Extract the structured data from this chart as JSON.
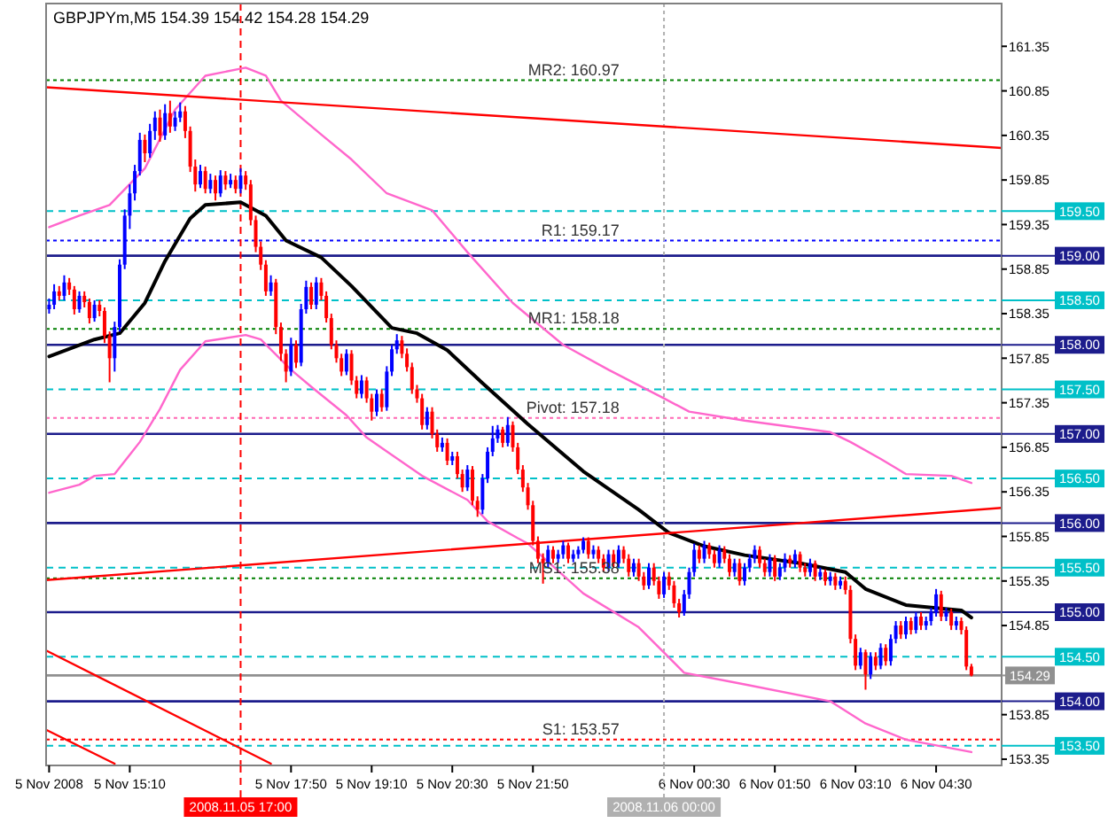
{
  "chart_data": {
    "type": "candlestick",
    "title": "GBPJPYm,M5  154.39 154.42 154.28 154.29",
    "xlim": [
      "2008-11-05T13:47",
      "2008-11-06T05:35"
    ],
    "xticks": [
      {
        "value": "2008-11-05T13:50",
        "label": "5 Nov 2008"
      },
      {
        "value": "2008-11-05T15:10",
        "label": "5 Nov 15:10"
      },
      {
        "value": "2008-11-05T17:50",
        "label": "5 Nov 17:50"
      },
      {
        "value": "2008-11-05T19:10",
        "label": "5 Nov 19:10"
      },
      {
        "value": "2008-11-05T20:30",
        "label": "5 Nov 20:30"
      },
      {
        "value": "2008-11-05T21:50",
        "label": "5 Nov 21:50"
      },
      {
        "value": "2008-11-06T00:30",
        "label": "6 Nov 00:30"
      },
      {
        "value": "2008-11-06T01:50",
        "label": "6 Nov 01:50"
      },
      {
        "value": "2008-11-06T03:10",
        "label": "6 Nov 03:10"
      },
      {
        "value": "2008-11-06T04:30",
        "label": "6 Nov 04:30"
      }
    ],
    "ylim": [
      153.28,
      161.83
    ],
    "yticks": [
      161.35,
      160.85,
      160.35,
      159.85,
      159.35,
      158.85,
      158.35,
      157.85,
      157.35,
      156.85,
      156.35,
      155.85,
      155.35,
      154.85,
      153.85,
      153.35
    ],
    "series": [
      {
        "type": "line",
        "color": "#ff66cc",
        "x": [
          "2008-11-05T13:50",
          "2008-11-05T14:20",
          "2008-11-05T14:50",
          "2008-11-05T15:25",
          "2008-11-05T15:55",
          "2008-11-05T16:25",
          "2008-11-05T17:05",
          "2008-11-05T17:25",
          "2008-11-05T17:40",
          "2008-11-05T18:20",
          "2008-11-05T18:50",
          "2008-11-05T19:25",
          "2008-11-05T20:10",
          "2008-11-05T20:45",
          "2008-11-05T21:30",
          "2008-11-05T22:20",
          "2008-11-05T23:05",
          "2008-11-06T00:00",
          "2008-11-06T00:25",
          "2008-11-06T01:20",
          "2008-11-06T02:45",
          "2008-11-06T03:05",
          "2008-11-06T03:35",
          "2008-11-06T04:00",
          "2008-11-06T04:45",
          "2008-11-06T05:05"
        ],
        "values": [
          159.32,
          159.45,
          159.57,
          159.98,
          160.64,
          161.02,
          161.11,
          161.02,
          160.74,
          160.36,
          160.08,
          159.7,
          159.51,
          159.04,
          158.47,
          158.0,
          157.72,
          157.4,
          157.25,
          157.15,
          157.02,
          156.91,
          156.72,
          156.55,
          156.53,
          156.45
        ]
      },
      {
        "type": "line",
        "color": "#ff66cc",
        "x": [
          "2008-11-05T13:50",
          "2008-11-05T14:20",
          "2008-11-05T14:35",
          "2008-11-05T14:55",
          "2008-11-05T15:20",
          "2008-11-05T15:40",
          "2008-11-05T16:00",
          "2008-11-05T16:25",
          "2008-11-05T17:05",
          "2008-11-05T17:20",
          "2008-11-05T17:50",
          "2008-11-05T18:10",
          "2008-11-05T18:45",
          "2008-11-05T19:05",
          "2008-11-05T20:00",
          "2008-11-05T20:45",
          "2008-11-05T21:05",
          "2008-11-05T21:35",
          "2008-11-05T21:45",
          "2008-11-05T22:40",
          "2008-11-05T23:35",
          "2008-11-06T00:20",
          "2008-11-06T01:20",
          "2008-11-06T02:45",
          "2008-11-06T03:20",
          "2008-11-06T04:00",
          "2008-11-06T05:05"
        ],
        "values": [
          156.34,
          156.43,
          156.53,
          156.55,
          156.91,
          157.28,
          157.72,
          158.04,
          158.11,
          158.06,
          157.72,
          157.53,
          157.21,
          156.96,
          156.53,
          156.26,
          156.02,
          155.83,
          155.77,
          155.21,
          154.83,
          154.32,
          154.19,
          154.0,
          153.75,
          153.57,
          153.43
        ]
      },
      {
        "type": "line",
        "color": "#000000",
        "x": [
          "2008-11-05T13:50",
          "2008-11-05T14:35",
          "2008-11-05T15:00",
          "2008-11-05T15:25",
          "2008-11-05T15:45",
          "2008-11-05T16:10",
          "2008-11-05T16:25",
          "2008-11-05T17:00",
          "2008-11-05T17:25",
          "2008-11-05T17:45",
          "2008-11-05T18:20",
          "2008-11-05T18:50",
          "2008-11-05T19:30",
          "2008-11-05T19:55",
          "2008-11-05T20:25",
          "2008-11-05T21:00",
          "2008-11-05T21:45",
          "2008-11-05T22:40",
          "2008-11-05T23:35",
          "2008-11-06T00:05",
          "2008-11-06T00:40",
          "2008-11-06T01:20",
          "2008-11-06T02:15",
          "2008-11-06T03:00",
          "2008-11-06T03:20",
          "2008-11-06T04:00",
          "2008-11-06T04:55",
          "2008-11-06T05:05"
        ],
        "values": [
          157.87,
          158.06,
          158.13,
          158.47,
          158.94,
          159.42,
          159.57,
          159.6,
          159.45,
          159.17,
          158.98,
          158.66,
          158.19,
          158.13,
          157.94,
          157.57,
          157.11,
          156.58,
          156.15,
          155.89,
          155.74,
          155.64,
          155.55,
          155.45,
          155.26,
          155.08,
          155.02,
          154.94
        ]
      },
      {
        "type": "line",
        "color": "#ff0000",
        "x": [
          "2008-11-05T13:47",
          "2008-11-06T05:35"
        ],
        "values": [
          160.89,
          160.21
        ]
      },
      {
        "type": "line",
        "color": "#ff0000",
        "x": [
          "2008-11-05T13:47",
          "2008-11-06T05:35"
        ],
        "values": [
          155.36,
          156.17
        ]
      },
      {
        "type": "line",
        "color": "#ff0000",
        "x": [
          "2008-11-05T13:47",
          "2008-11-05T17:30"
        ],
        "values": [
          154.57,
          153.3
        ]
      },
      {
        "type": "line",
        "color": "#ff0000",
        "x": [
          "2008-11-05T13:47",
          "2008-11-05T14:55"
        ],
        "values": [
          153.68,
          153.3
        ]
      },
      {
        "x": [
          "2008-11-05T13:50",
          "2008-11-05T13:55",
          "2008-11-05T14:00",
          "2008-11-05T14:05",
          "2008-11-05T14:10",
          "2008-11-05T14:15",
          "2008-11-05T14:20",
          "2008-11-05T14:25",
          "2008-11-05T14:30",
          "2008-11-05T14:35",
          "2008-11-05T14:40",
          "2008-11-05T14:45",
          "2008-11-05T14:50",
          "2008-11-05T14:55",
          "2008-11-05T15:00",
          "2008-11-05T15:05",
          "2008-11-05T15:10",
          "2008-11-05T15:15",
          "2008-11-05T15:20",
          "2008-11-05T15:25",
          "2008-11-05T15:30",
          "2008-11-05T15:35",
          "2008-11-05T15:40",
          "2008-11-05T15:45",
          "2008-11-05T15:50",
          "2008-11-05T15:55",
          "2008-11-05T16:00",
          "2008-11-05T16:05",
          "2008-11-05T16:10",
          "2008-11-05T16:15",
          "2008-11-05T16:20",
          "2008-11-05T16:25",
          "2008-11-05T16:30",
          "2008-11-05T16:35",
          "2008-11-05T16:40",
          "2008-11-05T16:45",
          "2008-11-05T16:50",
          "2008-11-05T16:55",
          "2008-11-05T17:00",
          "2008-11-05T17:05",
          "2008-11-05T17:10",
          "2008-11-05T17:15",
          "2008-11-05T17:20",
          "2008-11-05T17:25",
          "2008-11-05T17:30",
          "2008-11-05T17:35",
          "2008-11-05T17:40",
          "2008-11-05T17:45",
          "2008-11-05T17:50",
          "2008-11-05T17:55",
          "2008-11-05T18:00",
          "2008-11-05T18:05",
          "2008-11-05T18:10",
          "2008-11-05T18:15",
          "2008-11-05T18:20",
          "2008-11-05T18:25",
          "2008-11-05T18:30",
          "2008-11-05T18:35",
          "2008-11-05T18:40",
          "2008-11-05T18:45",
          "2008-11-05T18:50",
          "2008-11-05T18:55",
          "2008-11-05T19:00",
          "2008-11-05T19:05",
          "2008-11-05T19:10",
          "2008-11-05T19:15",
          "2008-11-05T19:20",
          "2008-11-05T19:25",
          "2008-11-05T19:30",
          "2008-11-05T19:35",
          "2008-11-05T19:40",
          "2008-11-05T19:45",
          "2008-11-05T19:50",
          "2008-11-05T19:55",
          "2008-11-05T20:00",
          "2008-11-05T20:05",
          "2008-11-05T20:10",
          "2008-11-05T20:15",
          "2008-11-05T20:20",
          "2008-11-05T20:25",
          "2008-11-05T20:30",
          "2008-11-05T20:35",
          "2008-11-05T20:40",
          "2008-11-05T20:45",
          "2008-11-05T20:50",
          "2008-11-05T20:55",
          "2008-11-05T21:00",
          "2008-11-05T21:05",
          "2008-11-05T21:10",
          "2008-11-05T21:15",
          "2008-11-05T21:20",
          "2008-11-05T21:25",
          "2008-11-05T21:30",
          "2008-11-05T21:35",
          "2008-11-05T21:40",
          "2008-11-05T21:45",
          "2008-11-05T21:50",
          "2008-11-05T21:55",
          "2008-11-05T22:00",
          "2008-11-05T22:05",
          "2008-11-05T22:10",
          "2008-11-05T22:15",
          "2008-11-05T22:20",
          "2008-11-05T22:25",
          "2008-11-05T22:30",
          "2008-11-05T22:35",
          "2008-11-05T22:40",
          "2008-11-05T22:45",
          "2008-11-05T22:50",
          "2008-11-05T22:55",
          "2008-11-05T23:00",
          "2008-11-05T23:05",
          "2008-11-05T23:10",
          "2008-11-05T23:15",
          "2008-11-05T23:20",
          "2008-11-05T23:25",
          "2008-11-05T23:30",
          "2008-11-05T23:35",
          "2008-11-05T23:40",
          "2008-11-05T23:45",
          "2008-11-05T23:50",
          "2008-11-05T23:55",
          "2008-11-06T00:00",
          "2008-11-06T00:05",
          "2008-11-06T00:10",
          "2008-11-06T00:15",
          "2008-11-06T00:20",
          "2008-11-06T00:25",
          "2008-11-06T00:30",
          "2008-11-06T00:35",
          "2008-11-06T00:40",
          "2008-11-06T00:45",
          "2008-11-06T00:50",
          "2008-11-06T00:55",
          "2008-11-06T01:00",
          "2008-11-06T01:05",
          "2008-11-06T01:10",
          "2008-11-06T01:15",
          "2008-11-06T01:20",
          "2008-11-06T01:25",
          "2008-11-06T01:30",
          "2008-11-06T01:35",
          "2008-11-06T01:40",
          "2008-11-06T01:45",
          "2008-11-06T01:50",
          "2008-11-06T01:55",
          "2008-11-06T02:00",
          "2008-11-06T02:05",
          "2008-11-06T02:10",
          "2008-11-06T02:15",
          "2008-11-06T02:20",
          "2008-11-06T02:25",
          "2008-11-06T02:30",
          "2008-11-06T02:35",
          "2008-11-06T02:40",
          "2008-11-06T02:45",
          "2008-11-06T02:50",
          "2008-11-06T02:55",
          "2008-11-06T03:00",
          "2008-11-06T03:05",
          "2008-11-06T03:10",
          "2008-11-06T03:15",
          "2008-11-06T03:20",
          "2008-11-06T03:25",
          "2008-11-06T03:30",
          "2008-11-06T03:35",
          "2008-11-06T03:40",
          "2008-11-06T03:45",
          "2008-11-06T03:50",
          "2008-11-06T03:55",
          "2008-11-06T04:00",
          "2008-11-06T04:05",
          "2008-11-06T04:10",
          "2008-11-06T04:15",
          "2008-11-06T04:20",
          "2008-11-06T04:25",
          "2008-11-06T04:30",
          "2008-11-06T04:35",
          "2008-11-06T04:40",
          "2008-11-06T04:45",
          "2008-11-06T04:50",
          "2008-11-06T04:55",
          "2008-11-06T05:00",
          "2008-11-06T05:05"
        ],
        "ohlc": [
          [
            158.4,
            158.52,
            158.35,
            158.45
          ],
          [
            158.45,
            158.68,
            158.4,
            158.6
          ],
          [
            158.6,
            158.66,
            158.5,
            158.55
          ],
          [
            158.55,
            158.78,
            158.5,
            158.7
          ],
          [
            158.7,
            158.75,
            158.56,
            158.62
          ],
          [
            158.62,
            158.66,
            158.34,
            158.4
          ],
          [
            158.4,
            158.6,
            158.36,
            158.55
          ],
          [
            158.55,
            158.6,
            158.42,
            158.48
          ],
          [
            158.48,
            158.52,
            158.24,
            158.3
          ],
          [
            158.3,
            158.5,
            158.26,
            158.45
          ],
          [
            158.45,
            158.5,
            158.32,
            158.38
          ],
          [
            158.38,
            158.42,
            158.02,
            158.1
          ],
          [
            158.1,
            158.15,
            157.58,
            157.85
          ],
          [
            157.85,
            158.26,
            157.7,
            158.2
          ],
          [
            158.2,
            158.96,
            158.15,
            158.9
          ],
          [
            158.9,
            159.52,
            158.85,
            159.45
          ],
          [
            159.45,
            159.8,
            159.3,
            159.7
          ],
          [
            159.7,
            160.02,
            159.62,
            159.95
          ],
          [
            159.95,
            160.38,
            159.9,
            160.3
          ],
          [
            160.3,
            160.36,
            160.05,
            160.15
          ],
          [
            160.15,
            160.48,
            160.1,
            160.4
          ],
          [
            160.4,
            160.62,
            160.3,
            160.55
          ],
          [
            160.55,
            160.64,
            160.28,
            160.35
          ],
          [
            160.35,
            160.7,
            160.3,
            160.6
          ],
          [
            160.6,
            160.74,
            160.38,
            160.45
          ],
          [
            160.45,
            160.62,
            160.4,
            160.55
          ],
          [
            160.55,
            160.72,
            160.5,
            160.62
          ],
          [
            160.62,
            160.68,
            160.32,
            160.4
          ],
          [
            160.4,
            160.45,
            159.94,
            160.0
          ],
          [
            160.0,
            160.08,
            159.72,
            159.8
          ],
          [
            159.8,
            160.02,
            159.76,
            159.95
          ],
          [
            159.95,
            160.0,
            159.7,
            159.75
          ],
          [
            159.75,
            159.92,
            159.7,
            159.85
          ],
          [
            159.85,
            159.9,
            159.62,
            159.7
          ],
          [
            159.7,
            159.96,
            159.66,
            159.9
          ],
          [
            159.9,
            159.95,
            159.74,
            159.8
          ],
          [
            159.8,
            159.92,
            159.76,
            159.85
          ],
          [
            159.85,
            159.9,
            159.7,
            159.75
          ],
          [
            159.75,
            159.98,
            159.7,
            159.9
          ],
          [
            159.9,
            159.95,
            159.74,
            159.8
          ],
          [
            159.8,
            159.85,
            159.34,
            159.4
          ],
          [
            159.4,
            159.45,
            159.04,
            159.1
          ],
          [
            159.1,
            159.16,
            158.84,
            158.9
          ],
          [
            158.9,
            158.95,
            158.55,
            158.6
          ],
          [
            158.6,
            158.78,
            158.55,
            158.7
          ],
          [
            158.7,
            158.74,
            158.12,
            158.2
          ],
          [
            158.2,
            158.25,
            157.82,
            157.9
          ],
          [
            157.9,
            157.95,
            157.58,
            157.7
          ],
          [
            157.7,
            158.08,
            157.65,
            158.0
          ],
          [
            158.0,
            158.05,
            157.74,
            157.8
          ],
          [
            157.8,
            158.46,
            157.76,
            158.4
          ],
          [
            158.4,
            158.72,
            158.35,
            158.65
          ],
          [
            158.65,
            158.7,
            158.4,
            158.45
          ],
          [
            158.45,
            158.76,
            158.4,
            158.7
          ],
          [
            158.7,
            158.75,
            158.5,
            158.55
          ],
          [
            158.55,
            158.6,
            158.25,
            158.3
          ],
          [
            158.3,
            158.35,
            157.95,
            158.0
          ],
          [
            158.0,
            158.05,
            157.8,
            157.85
          ],
          [
            157.85,
            157.9,
            157.65,
            157.7
          ],
          [
            157.7,
            157.95,
            157.66,
            157.9
          ],
          [
            157.9,
            157.94,
            157.55,
            157.6
          ],
          [
            157.6,
            157.65,
            157.4,
            157.45
          ],
          [
            157.45,
            157.66,
            157.4,
            157.6
          ],
          [
            157.6,
            157.64,
            157.35,
            157.4
          ],
          [
            157.4,
            157.45,
            157.15,
            157.25
          ],
          [
            157.25,
            157.5,
            157.2,
            157.45
          ],
          [
            157.45,
            157.5,
            157.25,
            157.3
          ],
          [
            157.3,
            157.76,
            157.26,
            157.7
          ],
          [
            157.7,
            158.0,
            157.65,
            157.95
          ],
          [
            157.95,
            158.12,
            157.9,
            158.05
          ],
          [
            158.05,
            158.1,
            157.85,
            157.9
          ],
          [
            157.9,
            157.96,
            157.7,
            157.75
          ],
          [
            157.75,
            157.8,
            157.45,
            157.5
          ],
          [
            157.5,
            157.55,
            157.35,
            157.4
          ],
          [
            157.4,
            157.45,
            157.05,
            157.1
          ],
          [
            157.1,
            157.3,
            157.05,
            157.25
          ],
          [
            157.25,
            157.3,
            156.95,
            157.0
          ],
          [
            157.0,
            157.05,
            156.8,
            156.85
          ],
          [
            156.85,
            156.96,
            156.8,
            156.9
          ],
          [
            156.9,
            156.95,
            156.65,
            156.7
          ],
          [
            156.7,
            156.8,
            156.65,
            156.75
          ],
          [
            156.75,
            156.8,
            156.5,
            156.55
          ],
          [
            156.55,
            156.6,
            156.35,
            156.4
          ],
          [
            156.4,
            156.65,
            156.36,
            156.6
          ],
          [
            156.6,
            156.64,
            156.2,
            156.25
          ],
          [
            156.25,
            156.3,
            156.07,
            156.15
          ],
          [
            156.15,
            156.55,
            156.1,
            156.5
          ],
          [
            156.5,
            156.85,
            156.45,
            156.8
          ],
          [
            156.8,
            157.09,
            156.75,
            156.95
          ],
          [
            156.95,
            157.1,
            156.9,
            157.05
          ],
          [
            157.05,
            157.08,
            156.85,
            156.9
          ],
          [
            156.9,
            157.19,
            156.86,
            157.1
          ],
          [
            157.1,
            157.14,
            156.8,
            156.85
          ],
          [
            156.85,
            156.9,
            156.55,
            156.6
          ],
          [
            156.6,
            156.65,
            156.35,
            156.4
          ],
          [
            156.4,
            156.45,
            156.15,
            156.2
          ],
          [
            156.2,
            156.25,
            155.75,
            155.8
          ],
          [
            155.8,
            155.85,
            155.55,
            155.6
          ],
          [
            155.6,
            155.66,
            155.32,
            155.55
          ],
          [
            155.55,
            155.75,
            155.5,
            155.7
          ],
          [
            155.7,
            155.74,
            155.55,
            155.6
          ],
          [
            155.6,
            155.7,
            155.55,
            155.65
          ],
          [
            155.65,
            155.8,
            155.6,
            155.75
          ],
          [
            155.75,
            155.78,
            155.55,
            155.6
          ],
          [
            155.6,
            155.7,
            155.56,
            155.65
          ],
          [
            155.65,
            155.74,
            155.6,
            155.7
          ],
          [
            155.7,
            155.84,
            155.66,
            155.8
          ],
          [
            155.8,
            155.84,
            155.6,
            155.65
          ],
          [
            155.65,
            155.75,
            155.6,
            155.7
          ],
          [
            155.7,
            155.74,
            155.55,
            155.6
          ],
          [
            155.6,
            155.65,
            155.45,
            155.5
          ],
          [
            155.5,
            155.7,
            155.46,
            155.65
          ],
          [
            155.65,
            155.7,
            155.5,
            155.55
          ],
          [
            155.55,
            155.75,
            155.5,
            155.7
          ],
          [
            155.7,
            155.74,
            155.55,
            155.6
          ],
          [
            155.6,
            155.65,
            155.4,
            155.45
          ],
          [
            155.45,
            155.6,
            155.4,
            155.55
          ],
          [
            155.55,
            155.6,
            155.35,
            155.4
          ],
          [
            155.4,
            155.45,
            155.25,
            155.3
          ],
          [
            155.3,
            155.55,
            155.26,
            155.5
          ],
          [
            155.5,
            155.55,
            155.3,
            155.35
          ],
          [
            155.35,
            155.4,
            155.15,
            155.2
          ],
          [
            155.2,
            155.45,
            155.16,
            155.4
          ],
          [
            155.4,
            155.45,
            155.25,
            155.3
          ],
          [
            155.3,
            155.35,
            155.05,
            155.1
          ],
          [
            155.1,
            155.15,
            154.94,
            155.0
          ],
          [
            155.0,
            155.25,
            154.96,
            155.2
          ],
          [
            155.2,
            155.5,
            155.15,
            155.45
          ],
          [
            155.45,
            155.77,
            155.4,
            155.7
          ],
          [
            155.7,
            155.75,
            155.55,
            155.6
          ],
          [
            155.6,
            155.8,
            155.55,
            155.75
          ],
          [
            155.75,
            155.78,
            155.6,
            155.65
          ],
          [
            155.65,
            155.7,
            155.5,
            155.55
          ],
          [
            155.55,
            155.75,
            155.5,
            155.7
          ],
          [
            155.7,
            155.74,
            155.55,
            155.6
          ],
          [
            155.6,
            155.65,
            155.4,
            155.45
          ],
          [
            155.45,
            155.6,
            155.4,
            155.55
          ],
          [
            155.55,
            155.6,
            155.3,
            155.35
          ],
          [
            155.35,
            155.55,
            155.3,
            155.5
          ],
          [
            155.5,
            155.65,
            155.45,
            155.6
          ],
          [
            155.6,
            155.75,
            155.55,
            155.7
          ],
          [
            155.7,
            155.74,
            155.5,
            155.55
          ],
          [
            155.55,
            155.6,
            155.4,
            155.45
          ],
          [
            155.45,
            155.65,
            155.4,
            155.6
          ],
          [
            155.6,
            155.64,
            155.35,
            155.4
          ],
          [
            155.4,
            155.55,
            155.36,
            155.5
          ],
          [
            155.5,
            155.66,
            155.45,
            155.6
          ],
          [
            155.6,
            155.64,
            155.5,
            155.55
          ],
          [
            155.55,
            155.7,
            155.5,
            155.65
          ],
          [
            155.65,
            155.68,
            155.45,
            155.5
          ],
          [
            155.5,
            155.55,
            155.4,
            155.45
          ],
          [
            155.45,
            155.6,
            155.4,
            155.55
          ],
          [
            155.55,
            155.58,
            155.35,
            155.4
          ],
          [
            155.4,
            155.5,
            155.36,
            155.45
          ],
          [
            155.45,
            155.48,
            155.3,
            155.35
          ],
          [
            155.35,
            155.45,
            155.3,
            155.4
          ],
          [
            155.4,
            155.44,
            155.25,
            155.3
          ],
          [
            155.3,
            155.4,
            155.26,
            155.35
          ],
          [
            155.35,
            155.4,
            155.2,
            155.25
          ],
          [
            155.25,
            155.3,
            154.65,
            154.7
          ],
          [
            154.7,
            154.75,
            154.35,
            154.4
          ],
          [
            154.4,
            154.6,
            154.36,
            154.55
          ],
          [
            154.55,
            154.58,
            154.13,
            154.3
          ],
          [
            154.3,
            154.55,
            154.25,
            154.5
          ],
          [
            154.5,
            154.55,
            154.35,
            154.4
          ],
          [
            154.4,
            154.65,
            154.36,
            154.6
          ],
          [
            154.6,
            154.64,
            154.4,
            154.45
          ],
          [
            154.45,
            154.75,
            154.4,
            154.7
          ],
          [
            154.7,
            154.9,
            154.65,
            154.85
          ],
          [
            154.85,
            154.9,
            154.7,
            154.75
          ],
          [
            154.75,
            154.95,
            154.7,
            154.9
          ],
          [
            154.9,
            154.94,
            154.75,
            154.8
          ],
          [
            154.8,
            155.0,
            154.76,
            154.95
          ],
          [
            154.95,
            155.0,
            154.8,
            154.85
          ],
          [
            154.85,
            154.95,
            154.8,
            154.9
          ],
          [
            154.9,
            155.05,
            154.85,
            155.0
          ],
          [
            155.0,
            155.26,
            154.95,
            155.2
          ],
          [
            155.2,
            155.24,
            154.9,
            154.95
          ],
          [
            154.95,
            155.05,
            154.9,
            155.0
          ],
          [
            155.0,
            155.04,
            154.8,
            154.85
          ],
          [
            154.85,
            154.95,
            154.8,
            154.9
          ],
          [
            154.9,
            154.94,
            154.75,
            154.8
          ],
          [
            154.8,
            154.84,
            154.35,
            154.39
          ],
          [
            154.39,
            154.42,
            154.28,
            154.29
          ]
        ],
        "colors": [
          "#0000ff",
          "#0000ff",
          "#ff0000",
          "#0000ff",
          "#ff0000",
          "#ff0000",
          "#0000ff",
          "#ff0000",
          "#ff0000",
          "#0000ff",
          "#ff0000",
          "#ff0000",
          "#ff0000",
          "#0000ff",
          "#0000ff",
          "#0000ff",
          "#0000ff",
          "#0000ff",
          "#0000ff",
          "#ff0000",
          "#0000ff",
          "#0000ff",
          "#ff0000",
          "#0000ff",
          "#ff0000",
          "#0000ff",
          "#0000ff",
          "#ff0000",
          "#ff0000",
          "#ff0000",
          "#0000ff",
          "#ff0000",
          "#0000ff",
          "#ff0000",
          "#0000ff",
          "#ff0000",
          "#0000ff",
          "#ff0000",
          "#0000ff",
          "#ff0000",
          "#ff0000",
          "#ff0000",
          "#ff0000",
          "#ff0000",
          "#0000ff",
          "#ff0000",
          "#ff0000",
          "#ff0000",
          "#0000ff",
          "#ff0000",
          "#0000ff",
          "#0000ff",
          "#ff0000",
          "#0000ff",
          "#ff0000",
          "#ff0000",
          "#ff0000",
          "#ff0000",
          "#ff0000",
          "#0000ff",
          "#ff0000",
          "#ff0000",
          "#0000ff",
          "#ff0000",
          "#ff0000",
          "#0000ff",
          "#ff0000",
          "#0000ff",
          "#0000ff",
          "#0000ff",
          "#ff0000",
          "#ff0000",
          "#ff0000",
          "#ff0000",
          "#ff0000",
          "#0000ff",
          "#ff0000",
          "#ff0000",
          "#0000ff",
          "#ff0000",
          "#0000ff",
          "#ff0000",
          "#ff0000",
          "#0000ff",
          "#ff0000",
          "#ff0000",
          "#0000ff",
          "#0000ff",
          "#0000ff",
          "#0000ff",
          "#ff0000",
          "#0000ff",
          "#ff0000",
          "#ff0000",
          "#ff0000",
          "#ff0000",
          "#ff0000",
          "#ff0000",
          "#ff0000",
          "#0000ff",
          "#ff0000",
          "#0000ff",
          "#0000ff",
          "#ff0000",
          "#0000ff",
          "#0000ff",
          "#0000ff",
          "#ff0000",
          "#0000ff",
          "#ff0000",
          "#ff0000",
          "#0000ff",
          "#ff0000",
          "#0000ff",
          "#ff0000",
          "#ff0000",
          "#0000ff",
          "#ff0000",
          "#ff0000",
          "#0000ff",
          "#ff0000",
          "#ff0000",
          "#0000ff",
          "#ff0000",
          "#ff0000",
          "#ff0000",
          "#0000ff",
          "#0000ff",
          "#0000ff",
          "#ff0000",
          "#0000ff",
          "#ff0000",
          "#ff0000",
          "#0000ff",
          "#ff0000",
          "#ff0000",
          "#0000ff",
          "#ff0000",
          "#0000ff",
          "#0000ff",
          "#0000ff",
          "#ff0000",
          "#ff0000",
          "#0000ff",
          "#ff0000",
          "#0000ff",
          "#0000ff",
          "#ff0000",
          "#0000ff",
          "#ff0000",
          "#ff0000",
          "#0000ff",
          "#ff0000",
          "#0000ff",
          "#ff0000",
          "#0000ff",
          "#ff0000",
          "#0000ff",
          "#ff0000",
          "#ff0000",
          "#ff0000",
          "#0000ff",
          "#ff0000",
          "#0000ff",
          "#ff0000",
          "#0000ff",
          "#ff0000",
          "#0000ff",
          "#0000ff",
          "#ff0000",
          "#0000ff",
          "#ff0000",
          "#0000ff",
          "#ff0000",
          "#0000ff",
          "#0000ff",
          "#0000ff",
          "#ff0000",
          "#0000ff",
          "#ff0000",
          "#0000ff",
          "#ff0000",
          "#ff0000",
          "#ff0000"
        ]
      }
    ],
    "ref_lines": [
      {
        "axis": "y",
        "value": 159,
        "label": "159.00",
        "color": "#1c1c8c",
        "line_style": "solid"
      },
      {
        "axis": "y",
        "value": 158,
        "label": "158.00",
        "color": "#1c1c8c",
        "line_style": "solid"
      },
      {
        "axis": "y",
        "value": 157,
        "label": "157.00",
        "color": "#1c1c8c",
        "line_style": "solid"
      },
      {
        "axis": "y",
        "value": 156,
        "label": "156.00",
        "color": "#1c1c8c",
        "line_style": "solid"
      },
      {
        "axis": "y",
        "value": 155,
        "label": "155.00",
        "color": "#1c1c8c",
        "line_style": "solid"
      },
      {
        "axis": "y",
        "value": 154,
        "label": "154.00",
        "color": "#1c1c8c",
        "line_style": "solid"
      },
      {
        "axis": "y",
        "value": 159.5,
        "label": "159.50",
        "color": "#00c0c8",
        "line_style": "dashed"
      },
      {
        "axis": "y",
        "value": 158.5,
        "label": "158.50",
        "color": "#00c0c8",
        "line_style": "dashed"
      },
      {
        "axis": "y",
        "value": 157.5,
        "label": "157.50",
        "color": "#00c0c8",
        "line_style": "dashed"
      },
      {
        "axis": "y",
        "value": 156.5,
        "label": "156.50",
        "color": "#00c0c8",
        "line_style": "dashed"
      },
      {
        "axis": "y",
        "value": 155.5,
        "label": "155.50",
        "color": "#00c0c8",
        "line_style": "dashed"
      },
      {
        "axis": "y",
        "value": 154.5,
        "label": "154.50",
        "color": "#00c0c8",
        "line_style": "dashed"
      },
      {
        "axis": "y",
        "value": 153.5,
        "label": "153.50",
        "color": "#00c0c8",
        "line_style": "dashed"
      },
      {
        "axis": "y",
        "value": 154.29,
        "label": "154.29",
        "color": "#909090",
        "line_style": "solid"
      },
      {
        "axis": "y",
        "value": 160.97,
        "label": "MR2: 160.97",
        "color": "#008000",
        "line_style": "dotted"
      },
      {
        "axis": "y",
        "value": 159.17,
        "label": "R1: 159.17",
        "color": "#0000ff",
        "line_style": "dotted"
      },
      {
        "axis": "y",
        "value": 158.18,
        "label": "MR1: 158.18",
        "color": "#008000",
        "line_style": "dotted"
      },
      {
        "axis": "y",
        "value": 157.18,
        "label": "Pivot: 157.18",
        "color": "#ff69b4",
        "line_style": "dotted"
      },
      {
        "axis": "y",
        "value": 155.38,
        "label": "MS1: 155.38",
        "color": "#008000",
        "line_style": "dotted"
      },
      {
        "axis": "y",
        "value": 153.57,
        "label": "S1: 153.57",
        "color": "#ff0000",
        "line_style": "dotted"
      },
      {
        "axis": "x",
        "value": "2008-11-05T17:00",
        "label": "2008.11.05 17:00",
        "color": "#ff0000",
        "line_style": "dashed"
      },
      {
        "axis": "x",
        "value": "2008-11-06T00:00",
        "label": "2008.11.06 00:00",
        "color": "#b0b0b0",
        "line_style": "dotted"
      }
    ]
  }
}
